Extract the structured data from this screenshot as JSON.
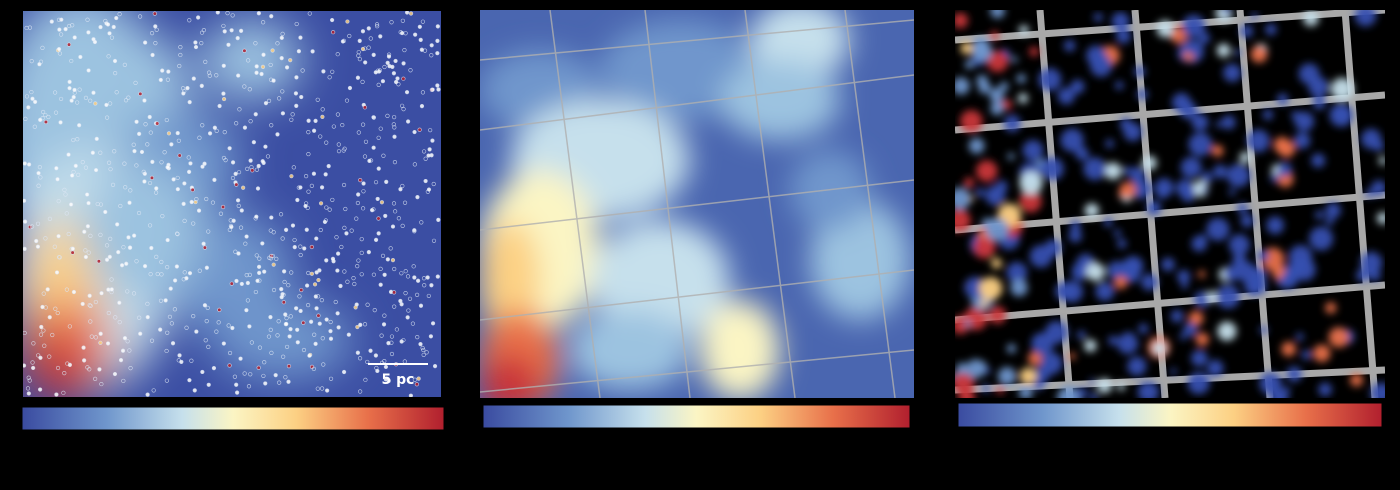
{
  "scale_bar": {
    "label": "5 pc"
  }
}
